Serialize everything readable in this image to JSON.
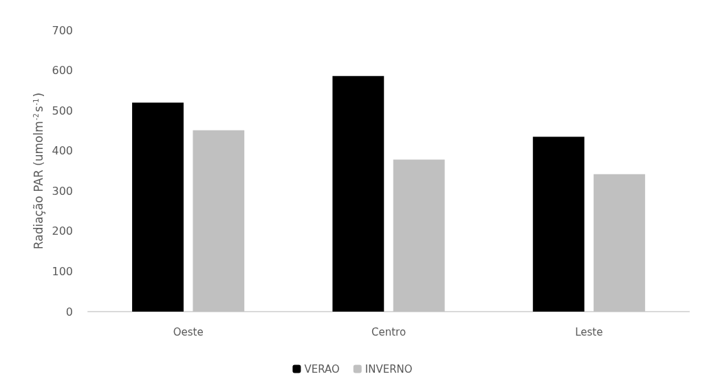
{
  "chart_data": {
    "type": "bar",
    "ylabel": "Radiação PAR (umolm$^{-2}$s$^{-1}$)",
    "categories": [
      "Oeste",
      "Centro",
      "Leste"
    ],
    "series": [
      {
        "name": "VERAO",
        "color": "#000000",
        "values": [
          520,
          586,
          435
        ]
      },
      {
        "name": "INVERNO",
        "color": "#c0c0c0",
        "values": [
          451,
          378,
          342
        ]
      }
    ],
    "ylim": [
      0,
      700
    ],
    "yticks": [
      0,
      100,
      200,
      300,
      400,
      500,
      600,
      700
    ],
    "grid": false,
    "legend": "bottom"
  }
}
